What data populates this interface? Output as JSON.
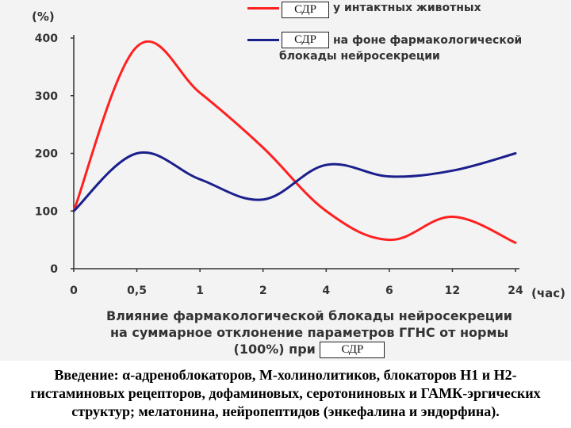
{
  "chart_data": {
    "type": "line",
    "x_label_unit": "(час)",
    "y_label_unit": "(%)",
    "categories": [
      "0",
      "0,5",
      "1",
      "2",
      "4",
      "6",
      "12",
      "24"
    ],
    "y_ticks": [
      0,
      100,
      200,
      300,
      400
    ],
    "ylim": [
      0,
      400
    ],
    "grid": false,
    "series": [
      {
        "name_box": "СДР",
        "name": "у интактных животных",
        "color": "#ff2020",
        "values": [
          100,
          385,
          305,
          210,
          100,
          50,
          90,
          45
        ]
      },
      {
        "name_box": "СДР",
        "name": "на фоне фармакологической блокады нейросекреции",
        "name_lines": [
          "на фоне фармакологической",
          "блокады нейросекреции"
        ],
        "color": "#1a1f8c",
        "values": [
          100,
          200,
          155,
          120,
          180,
          160,
          170,
          200
        ]
      }
    ],
    "title_lines": [
      "Влияние фармакологической блокады нейросекреции",
      "на суммарное отклонение параметров ГГНС от нормы"
    ],
    "title_tail": "(100%) при",
    "title_box": "СДР"
  },
  "footer": {
    "lines": [
      "Введение: α-адреноблокаторов, М-холинолитиков, блокаторов Н1 и Н2-",
      "гистаминовых рецепторов, дофаминовых, серотониновых и ГАМК-эргических",
      "структур; мелатонина, нейропептидов (энкефалина и эндорфина)."
    ]
  }
}
